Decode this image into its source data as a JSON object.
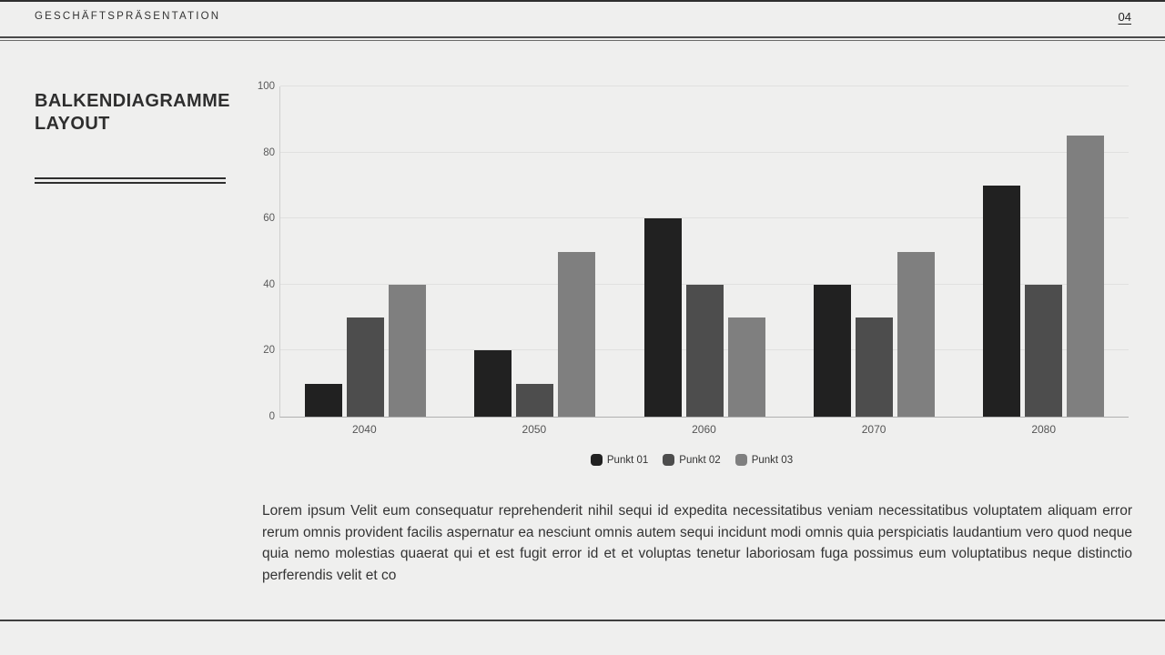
{
  "page": {
    "background": "#efefee"
  },
  "header": {
    "title": "GESCHÄFTSPRÄSENTATION",
    "page_number": "04"
  },
  "sidebar": {
    "title_line1": "BALKENDIAGRAMME",
    "title_line2": "LAYOUT"
  },
  "chart_data": {
    "type": "bar",
    "categories": [
      "2040",
      "2050",
      "2060",
      "2070",
      "2080"
    ],
    "series": [
      {
        "name": "Punkt 01",
        "color": "#212121",
        "values": [
          10,
          20,
          60,
          40,
          70
        ]
      },
      {
        "name": "Punkt 02",
        "color": "#4d4d4d",
        "values": [
          30,
          10,
          40,
          30,
          40
        ]
      },
      {
        "name": "Punkt 03",
        "color": "#7f7f7f",
        "values": [
          40,
          50,
          30,
          50,
          85
        ]
      }
    ],
    "title": "",
    "xlabel": "",
    "ylabel": "",
    "ylim": [
      0,
      100
    ],
    "yticks": [
      0,
      20,
      40,
      60,
      80,
      100
    ],
    "grid": true,
    "legend_position": "bottom",
    "colors": {
      "gridline": "#e0e0df",
      "axis": "#b0b0b0",
      "tick_label": "#5a5a5a"
    }
  },
  "body": {
    "paragraph": "Lorem ipsum Velit eum consequatur reprehenderit nihil sequi id expedita necessitatibus veniam necessitatibus voluptatem aliquam error rerum omnis provident facilis aspernatur ea nesciunt omnis autem sequi incidunt modi omnis quia perspiciatis laudantium vero quod neque quia nemo molestias quaerat qui et est fugit error id et et voluptas tenetur laboriosam fuga possimus eum voluptatibus neque distinctio perferendis velit et co"
  }
}
